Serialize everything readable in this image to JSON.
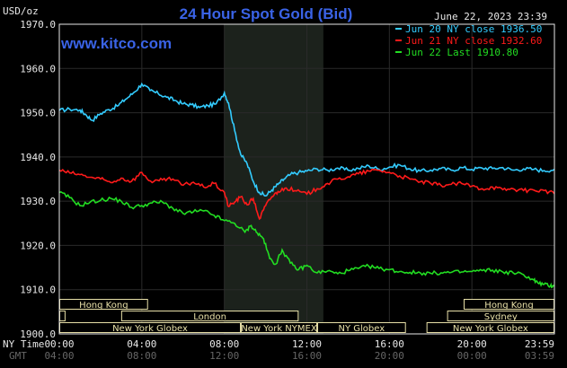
{
  "title": "24 Hour Spot Gold (Bid)",
  "timestamp": "June 22, 2023 23:39",
  "website": "www.kitco.com",
  "y_unit": "USD/oz",
  "x_label_ny": "NY Time",
  "x_label_gmt": "GMT",
  "colors": {
    "jun20": "#33ccff",
    "jun21": "#ff1a1a",
    "jun22": "#22dd22",
    "axis": "#e8e8e8",
    "grid": "#2a2a2a",
    "highlight": "#1c221c",
    "session_fill": "#e8e0a8"
  },
  "chart_data": {
    "type": "line",
    "title": "24 Hour Spot Gold (Bid)",
    "ylabel": "USD/oz",
    "ylim": [
      1900,
      1970
    ],
    "y_ticks": [
      "1900.0",
      "1910.0",
      "1920.0",
      "1930.0",
      "1940.0",
      "1950.0",
      "1960.0",
      "1970.0"
    ],
    "x_range_hours": [
      0,
      24
    ],
    "x_ticks_ny": [
      "00:00",
      "04:00",
      "08:00",
      "12:00",
      "16:00",
      "20:00",
      "23:59"
    ],
    "x_ticks_gmt": [
      "04:00",
      "08:00",
      "12:00",
      "16:00",
      "20:00",
      "00:00",
      "03:59"
    ],
    "highlight_hours": [
      8,
      12.8
    ],
    "grid": true,
    "legend_position": "top-right",
    "series": [
      {
        "name": "Jun 20 NY close 1936.50",
        "color": "#33ccff",
        "x": [
          0,
          0.5,
          1,
          1.3,
          1.6,
          2,
          2.4,
          2.8,
          3.2,
          3.6,
          4,
          4.4,
          4.8,
          5.2,
          5.6,
          6,
          6.4,
          6.8,
          7.2,
          7.6,
          8,
          8.2,
          8.5,
          8.8,
          9.1,
          9.4,
          9.7,
          10,
          10.3,
          10.6,
          10.9,
          11.2,
          11.6,
          12,
          12.5,
          13,
          13.5,
          14,
          14.5,
          15,
          15.5,
          16,
          16.5,
          17,
          17.5,
          18,
          18.5,
          19,
          19.5,
          20,
          20.5,
          21,
          21.5,
          22,
          22.5,
          23,
          23.5,
          24
        ],
        "values": [
          1950.5,
          1950.8,
          1950.6,
          1949.5,
          1948.3,
          1949.8,
          1950.7,
          1951.5,
          1953.0,
          1954.5,
          1956.5,
          1955.0,
          1954.3,
          1953.5,
          1952.8,
          1952.0,
          1951.8,
          1951.2,
          1951.6,
          1952.0,
          1954.5,
          1952.2,
          1946.0,
          1940.5,
          1938.5,
          1934.5,
          1932.0,
          1931.2,
          1932.5,
          1933.8,
          1935.0,
          1936.0,
          1936.5,
          1936.8,
          1937.3,
          1937.0,
          1937.5,
          1937.0,
          1937.4,
          1938.0,
          1937.2,
          1937.7,
          1938.2,
          1937.3,
          1936.8,
          1937.0,
          1937.4,
          1937.0,
          1937.6,
          1937.2,
          1937.5,
          1937.4,
          1937.6,
          1937.0,
          1937.3,
          1937.2,
          1936.9,
          1937.2
        ]
      },
      {
        "name": "Jun 21 NY close 1932.60",
        "color": "#ff1a1a",
        "x": [
          0,
          0.5,
          1,
          1.5,
          2,
          2.5,
          3,
          3.5,
          4,
          4.5,
          5,
          5.5,
          6,
          6.5,
          7,
          7.5,
          8,
          8.2,
          8.5,
          8.8,
          9.1,
          9.4,
          9.7,
          10,
          10.3,
          10.6,
          11,
          11.5,
          12,
          12.5,
          13,
          13.5,
          14,
          14.5,
          15,
          15.5,
          16,
          16.5,
          17,
          17.5,
          18,
          18.5,
          19,
          19.5,
          20,
          20.5,
          21,
          21.5,
          22,
          22.5,
          23,
          23.5,
          24
        ],
        "values": [
          1937.0,
          1936.4,
          1936.0,
          1935.4,
          1935.0,
          1934.2,
          1935.2,
          1934.5,
          1936.5,
          1934.2,
          1934.8,
          1935.0,
          1933.6,
          1934.3,
          1933.2,
          1934.0,
          1932.0,
          1928.8,
          1929.8,
          1931.0,
          1929.2,
          1930.6,
          1926.0,
          1929.0,
          1931.0,
          1932.2,
          1933.0,
          1932.3,
          1931.6,
          1932.8,
          1934.0,
          1935.0,
          1935.5,
          1936.2,
          1936.8,
          1937.0,
          1936.5,
          1935.7,
          1935.0,
          1934.4,
          1934.0,
          1933.6,
          1933.8,
          1934.0,
          1933.4,
          1932.8,
          1933.2,
          1932.6,
          1932.8,
          1932.4,
          1932.5,
          1932.4,
          1931.7
        ]
      },
      {
        "name": "Jun 22 Last 1910.80",
        "color": "#22dd22",
        "x": [
          0,
          0.5,
          1,
          1.5,
          2,
          2.5,
          3,
          3.5,
          4,
          4.5,
          5,
          5.5,
          6,
          6.5,
          7,
          7.5,
          8,
          8.5,
          9,
          9.3,
          9.6,
          9.9,
          10.2,
          10.5,
          10.8,
          11.2,
          11.6,
          12,
          12.5,
          13,
          13.5,
          14,
          14.5,
          15,
          15.5,
          16,
          16.5,
          17,
          17.5,
          18,
          18.5,
          19,
          19.5,
          20,
          20.5,
          21,
          21.5,
          22,
          22.5,
          23,
          23.2,
          23.5,
          23.8,
          24
        ],
        "values": [
          1932.0,
          1930.8,
          1929.0,
          1929.8,
          1930.2,
          1930.6,
          1930.0,
          1928.6,
          1929.0,
          1929.6,
          1929.8,
          1928.4,
          1927.2,
          1927.6,
          1927.8,
          1926.8,
          1925.6,
          1925.0,
          1923.0,
          1924.5,
          1922.8,
          1921.5,
          1917.0,
          1915.8,
          1919.0,
          1916.0,
          1914.5,
          1915.5,
          1913.8,
          1914.2,
          1913.6,
          1914.3,
          1914.8,
          1915.3,
          1914.8,
          1914.5,
          1914.1,
          1913.9,
          1913.8,
          1913.7,
          1913.8,
          1913.9,
          1914.0,
          1914.1,
          1914.3,
          1914.4,
          1914.0,
          1913.8,
          1913.4,
          1912.2,
          1911.5,
          1911.2,
          1910.8,
          1911.0
        ]
      }
    ],
    "sessions": [
      {
        "name": "Hong Kong",
        "row": 0,
        "start": 0,
        "end": 4.3
      },
      {
        "name": "Hong Kong",
        "row": 0,
        "start": 19.6,
        "end": 24
      },
      {
        "name": "London",
        "row": 1,
        "start": 0,
        "end": 0.3
      },
      {
        "name": "London",
        "row": 1,
        "start": 3.0,
        "end": 11.6
      },
      {
        "name": "Sydney",
        "row": 1,
        "start": 18.8,
        "end": 24
      },
      {
        "name": "New York Globex",
        "row": 2,
        "start": 0,
        "end": 8.8
      },
      {
        "name": "New York NYMEX",
        "row": 2,
        "start": 8.8,
        "end": 12.5
      },
      {
        "name": "NY Globex",
        "row": 2,
        "start": 12.5,
        "end": 16.8
      },
      {
        "name": "New York Globex",
        "row": 2,
        "start": 17.8,
        "end": 24
      }
    ]
  }
}
